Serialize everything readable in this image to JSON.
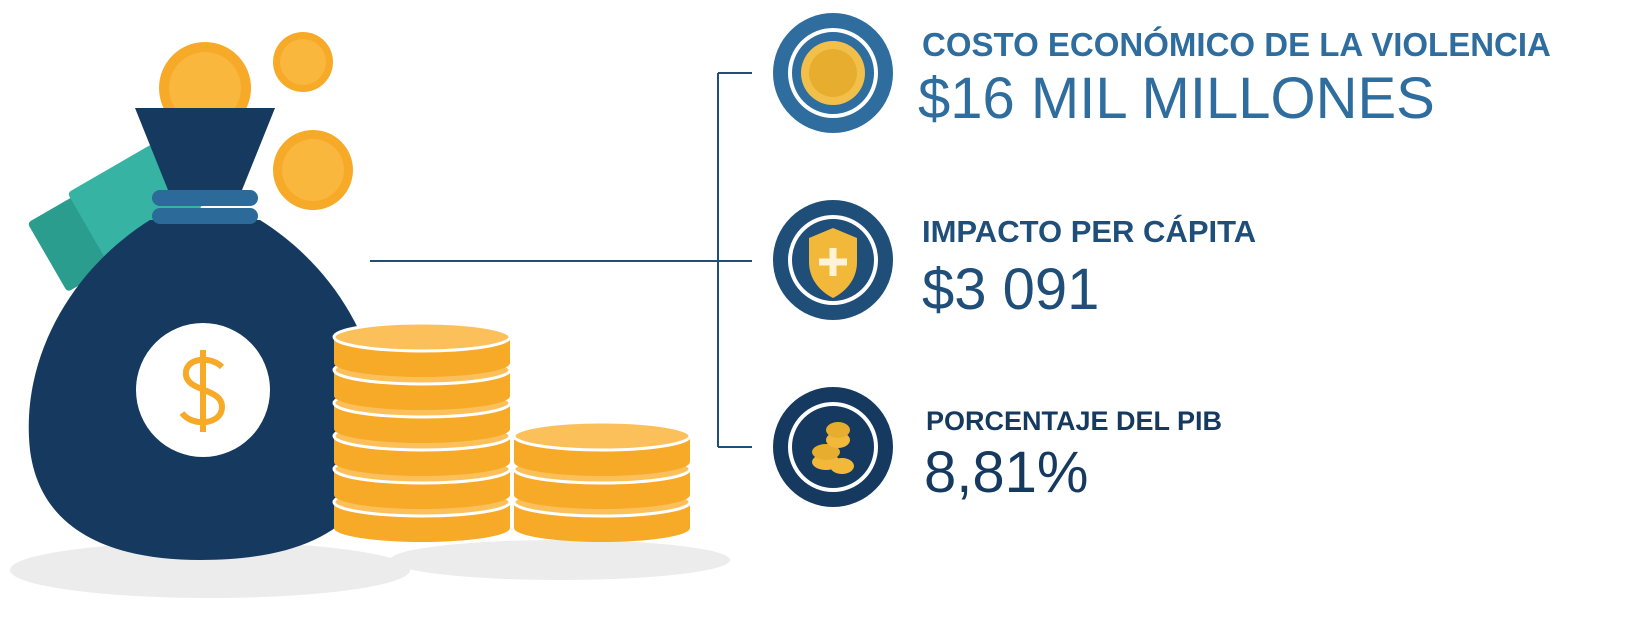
{
  "items": [
    {
      "label": "COSTO ECONÓMICO DE LA VIOLENCIA",
      "value": "$16 MIL MILLONES"
    },
    {
      "label": "IMPACTO PER CÁPITA",
      "value": "$3 091"
    },
    {
      "label": "PORCENTAJE DEL PIB",
      "value": "8,81%"
    }
  ]
}
